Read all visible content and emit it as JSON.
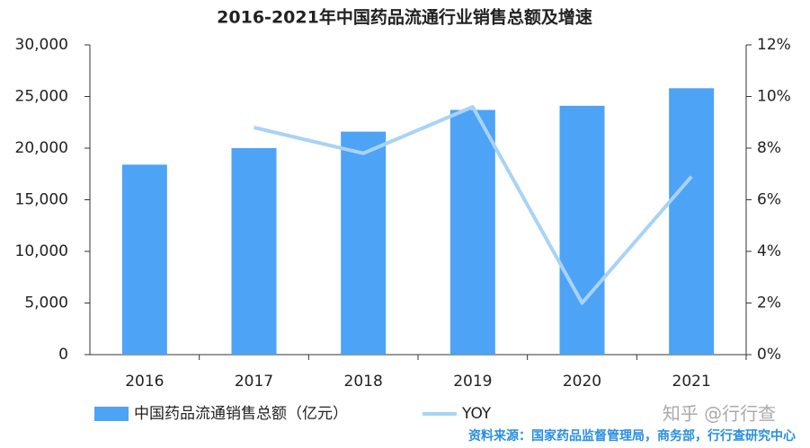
{
  "chart_data": {
    "type": "bar_line",
    "title": "2016-2021年中国药品流通行业销售总额及增速",
    "categories": [
      "2016",
      "2017",
      "2018",
      "2019",
      "2020",
      "2021"
    ],
    "series": [
      {
        "name": "中国药品流通销售总额（亿元）",
        "type": "bar",
        "color": "#4da3f5",
        "values": [
          18400,
          20000,
          21600,
          23700,
          24100,
          25800
        ]
      },
      {
        "name": "YOY",
        "type": "line",
        "axis": "y2",
        "color": "#a8d3f7",
        "values": [
          null,
          8.8,
          7.8,
          9.6,
          2.0,
          6.9
        ]
      }
    ],
    "ylim": [
      0,
      30000
    ],
    "yticks": [
      0,
      {
        "value": 5000,
        "label": "5,000"
      },
      {
        "value": 10000,
        "label": "10,000"
      },
      {
        "value": 15000,
        "label": "15,000"
      },
      {
        "value": 20000,
        "label": "20,000"
      },
      {
        "value": 25000,
        "label": "25,000"
      },
      {
        "value": 30000,
        "label": "30,000"
      }
    ],
    "y2lim": [
      0,
      12
    ],
    "y2ticks": [
      {
        "value": 0,
        "label": "0%"
      },
      {
        "value": 2,
        "label": "2%"
      },
      {
        "value": 4,
        "label": "4%"
      },
      {
        "value": 6,
        "label": "6%"
      },
      {
        "value": 8,
        "label": "8%"
      },
      {
        "value": 10,
        "label": "10%"
      },
      {
        "value": 12,
        "label": "12%"
      }
    ],
    "grid": false,
    "legend": "bottom",
    "source": "资料来源：国家药品监督管理局，商务部，行行查研究中心",
    "watermark": "知乎 @行行查"
  }
}
